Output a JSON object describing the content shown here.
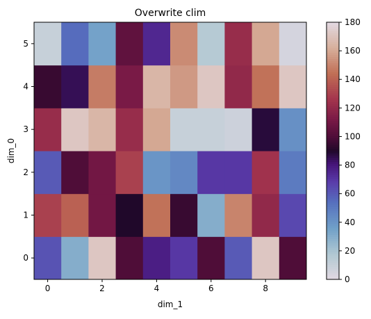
{
  "chart_data": {
    "type": "heatmap",
    "title": "Overwrite clim",
    "xlabel": "dim_1",
    "ylabel": "dim_0",
    "x": [
      0,
      1,
      2,
      3,
      4,
      5,
      6,
      7,
      8,
      9
    ],
    "y": [
      0,
      1,
      2,
      3,
      4,
      5
    ],
    "xticks": [
      0,
      2,
      4,
      6,
      8
    ],
    "yticks": [
      0,
      1,
      2,
      3,
      4,
      5
    ],
    "values": [
      [
        62,
        30,
        172,
        100,
        78,
        70,
        100,
        60,
        172,
        100
      ],
      [
        130,
        140,
        110,
        90,
        145,
        95,
        30,
        150,
        120,
        65
      ],
      [
        60,
        100,
        110,
        130,
        40,
        45,
        70,
        70,
        125,
        50
      ],
      [
        122,
        172,
        165,
        122,
        160,
        10,
        10,
        8,
        88,
        42
      ],
      [
        95,
        85,
        148,
        112,
        165,
        156,
        172,
        120,
        145,
        172
      ],
      [
        10,
        55,
        35,
        105,
        75,
        152,
        16,
        122,
        160,
        5
      ]
    ],
    "clim": [
      0,
      180
    ],
    "colormap": "twilight",
    "colorbar": {
      "ticks": [
        0,
        20,
        40,
        60,
        80,
        100,
        120,
        140,
        160,
        180
      ],
      "position": "right"
    },
    "grid": false
  }
}
